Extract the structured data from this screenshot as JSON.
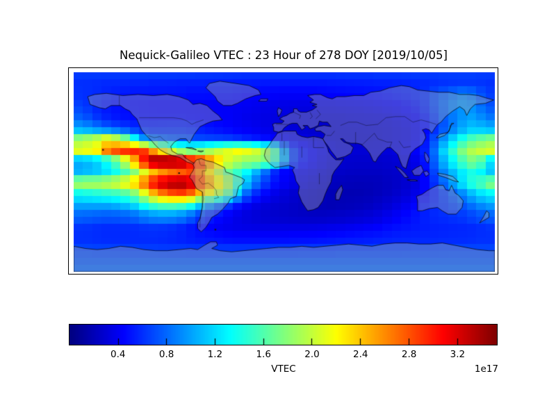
{
  "title": "Nequick-Galileo VTEC : 23 Hour of 278 DOY [2019/10/05]",
  "colorbar": {
    "label": "VTEC",
    "scale_note": "1e17",
    "tick_labels": [
      "0.4",
      "0.8",
      "1.2",
      "1.6",
      "2.0",
      "2.4",
      "2.8",
      "3.2"
    ],
    "tick_values": [
      0.4,
      0.8,
      1.2,
      1.6,
      2.0,
      2.4,
      2.8,
      3.2
    ],
    "vmin": 0.0,
    "vmax": 3.53,
    "colormap": "jet"
  },
  "colors": {
    "background": "#ffffff",
    "frame": "#000000",
    "land_overlay": "rgba(168,168,172,0.38)",
    "coastline": "rgba(0,0,0,0.88)",
    "country_border": "rgba(0,0,0,0.65)"
  },
  "chart_data": {
    "type": "heatmap",
    "title": "Nequick-Galileo VTEC : 23 Hour of 278 DOY [2019/10/05]",
    "colorbar_label": "VTEC",
    "units_scale_factor": "1e17",
    "colormap": "jet",
    "vmin": 0.0,
    "vmax": 3.53,
    "projection": "equirectangular world map",
    "lon_range": [
      -180,
      180
    ],
    "lat_range": [
      -90,
      90
    ],
    "grid_note": "VTEC values in units of 1e17 el/m^2, sampled on 10-degree grid (rows = lats 90..-90, cols = lons -180..170)",
    "lons": [
      -180,
      -170,
      -160,
      -150,
      -140,
      -130,
      -120,
      -110,
      -100,
      -90,
      -80,
      -70,
      -60,
      -50,
      -40,
      -30,
      -20,
      -10,
      0,
      10,
      20,
      30,
      40,
      50,
      60,
      70,
      80,
      90,
      100,
      110,
      120,
      130,
      140,
      150,
      160,
      170
    ],
    "lats": [
      90,
      80,
      70,
      60,
      50,
      40,
      30,
      20,
      10,
      0,
      -10,
      -20,
      -30,
      -40,
      -50,
      -60,
      -70,
      -80,
      -90
    ],
    "values": [
      [
        0.65,
        0.65,
        0.65,
        0.65,
        0.65,
        0.65,
        0.65,
        0.65,
        0.65,
        0.65,
        0.65,
        0.64,
        0.64,
        0.63,
        0.63,
        0.62,
        0.62,
        0.62,
        0.62,
        0.62,
        0.62,
        0.62,
        0.62,
        0.63,
        0.63,
        0.63,
        0.64,
        0.64,
        0.64,
        0.65,
        0.65,
        0.65,
        0.66,
        0.66,
        0.66,
        0.65
      ],
      [
        0.6,
        0.6,
        0.59,
        0.58,
        0.58,
        0.57,
        0.57,
        0.56,
        0.56,
        0.55,
        0.55,
        0.55,
        0.54,
        0.54,
        0.53,
        0.53,
        0.52,
        0.52,
        0.52,
        0.52,
        0.52,
        0.52,
        0.53,
        0.53,
        0.54,
        0.54,
        0.55,
        0.55,
        0.56,
        0.57,
        0.58,
        0.6,
        0.62,
        0.63,
        0.63,
        0.62
      ],
      [
        0.62,
        0.6,
        0.58,
        0.55,
        0.52,
        0.5,
        0.5,
        0.5,
        0.5,
        0.5,
        0.48,
        0.48,
        0.48,
        0.48,
        0.47,
        0.45,
        0.44,
        0.43,
        0.42,
        0.42,
        0.42,
        0.43,
        0.44,
        0.45,
        0.46,
        0.47,
        0.48,
        0.5,
        0.52,
        0.55,
        0.6,
        0.7,
        0.8,
        0.9,
        0.85,
        0.72
      ],
      [
        0.68,
        0.62,
        0.55,
        0.5,
        0.48,
        0.46,
        0.45,
        0.44,
        0.44,
        0.44,
        0.43,
        0.43,
        0.42,
        0.42,
        0.41,
        0.4,
        0.38,
        0.37,
        0.36,
        0.35,
        0.35,
        0.35,
        0.35,
        0.36,
        0.37,
        0.38,
        0.4,
        0.42,
        0.45,
        0.5,
        0.58,
        0.7,
        0.85,
        0.95,
        0.92,
        0.8
      ],
      [
        0.8,
        0.72,
        0.62,
        0.55,
        0.5,
        0.48,
        0.47,
        0.46,
        0.46,
        0.46,
        0.45,
        0.44,
        0.43,
        0.42,
        0.4,
        0.38,
        0.36,
        0.34,
        0.33,
        0.31,
        0.3,
        0.3,
        0.3,
        0.3,
        0.31,
        0.32,
        0.33,
        0.35,
        0.38,
        0.43,
        0.52,
        0.65,
        0.82,
        0.95,
        1.0,
        0.92
      ],
      [
        1.0,
        0.92,
        0.82,
        0.72,
        0.63,
        0.57,
        0.55,
        0.55,
        0.56,
        0.57,
        0.55,
        0.52,
        0.48,
        0.45,
        0.42,
        0.4,
        0.37,
        0.34,
        0.32,
        0.3,
        0.28,
        0.27,
        0.27,
        0.28,
        0.28,
        0.28,
        0.29,
        0.3,
        0.33,
        0.38,
        0.46,
        0.6,
        0.8,
        1.0,
        1.1,
        1.07
      ],
      [
        1.75,
        1.85,
        1.95,
        2.1,
        1.9,
        1.35,
        0.95,
        0.8,
        0.75,
        0.72,
        0.7,
        0.68,
        0.66,
        0.64,
        0.6,
        0.55,
        0.5,
        0.44,
        0.4,
        0.36,
        0.33,
        0.3,
        0.28,
        0.27,
        0.27,
        0.27,
        0.28,
        0.3,
        0.33,
        0.38,
        0.5,
        0.72,
        1.05,
        1.35,
        1.55,
        1.65
      ],
      [
        2.15,
        2.2,
        2.3,
        2.75,
        2.95,
        3.0,
        2.9,
        2.5,
        2.1,
        1.8,
        1.7,
        1.75,
        1.95,
        2.1,
        2.2,
        2.15,
        2.0,
        1.65,
        1.0,
        0.6,
        0.45,
        0.38,
        0.33,
        0.3,
        0.3,
        0.3,
        0.3,
        0.32,
        0.35,
        0.42,
        0.55,
        0.85,
        1.35,
        1.75,
        1.95,
        2.05
      ],
      [
        1.0,
        1.05,
        1.15,
        1.35,
        1.75,
        2.4,
        3.05,
        3.5,
        3.5,
        3.45,
        3.1,
        2.9,
        2.45,
        2.1,
        1.95,
        1.85,
        1.85,
        1.6,
        1.05,
        0.6,
        0.45,
        0.36,
        0.3,
        0.28,
        0.27,
        0.27,
        0.27,
        0.28,
        0.3,
        0.36,
        0.5,
        0.8,
        1.2,
        1.55,
        1.75,
        1.6
      ],
      [
        1.05,
        1.1,
        1.15,
        1.25,
        1.45,
        1.75,
        2.1,
        2.45,
        2.65,
        2.75,
        2.85,
        2.6,
        2.1,
        1.7,
        1.5,
        1.3,
        0.95,
        0.6,
        0.45,
        0.4,
        0.36,
        0.3,
        0.26,
        0.25,
        0.24,
        0.24,
        0.24,
        0.25,
        0.27,
        0.32,
        0.45,
        0.7,
        1.0,
        1.25,
        1.4,
        1.3
      ],
      [
        1.9,
        1.95,
        1.95,
        2.0,
        2.1,
        2.35,
        2.7,
        3.1,
        3.35,
        3.4,
        3.25,
        2.8,
        2.4,
        2.0,
        1.5,
        1.05,
        0.7,
        0.5,
        0.42,
        0.36,
        0.3,
        0.25,
        0.22,
        0.21,
        0.2,
        0.2,
        0.21,
        0.23,
        0.26,
        0.32,
        0.44,
        0.62,
        0.9,
        1.2,
        1.45,
        1.6
      ],
      [
        1.35,
        1.4,
        1.45,
        1.5,
        1.55,
        1.75,
        2.1,
        2.5,
        2.8,
        2.9,
        2.75,
        2.4,
        2.1,
        1.7,
        1.2,
        0.75,
        0.5,
        0.38,
        0.32,
        0.28,
        0.24,
        0.21,
        0.19,
        0.18,
        0.18,
        0.19,
        0.21,
        0.24,
        0.28,
        0.35,
        0.44,
        0.55,
        0.7,
        0.9,
        1.1,
        1.25
      ],
      [
        1.0,
        1.0,
        1.0,
        1.0,
        1.05,
        1.15,
        1.35,
        1.5,
        1.6,
        1.55,
        1.4,
        1.1,
        0.85,
        0.65,
        0.5,
        0.4,
        0.33,
        0.29,
        0.27,
        0.25,
        0.22,
        0.2,
        0.19,
        0.2,
        0.21,
        0.23,
        0.26,
        0.3,
        0.36,
        0.44,
        0.52,
        0.58,
        0.64,
        0.72,
        0.82,
        0.92
      ],
      [
        0.8,
        0.78,
        0.76,
        0.75,
        0.76,
        0.8,
        0.88,
        0.94,
        0.96,
        0.9,
        0.78,
        0.62,
        0.5,
        0.42,
        0.36,
        0.32,
        0.29,
        0.27,
        0.26,
        0.25,
        0.24,
        0.24,
        0.25,
        0.26,
        0.28,
        0.3,
        0.33,
        0.38,
        0.44,
        0.5,
        0.55,
        0.58,
        0.6,
        0.63,
        0.68,
        0.74
      ],
      [
        0.63,
        0.62,
        0.6,
        0.59,
        0.59,
        0.6,
        0.62,
        0.63,
        0.62,
        0.58,
        0.52,
        0.46,
        0.42,
        0.39,
        0.37,
        0.36,
        0.35,
        0.35,
        0.35,
        0.35,
        0.35,
        0.36,
        0.37,
        0.38,
        0.4,
        0.42,
        0.44,
        0.47,
        0.5,
        0.52,
        0.54,
        0.55,
        0.56,
        0.57,
        0.58,
        0.6
      ],
      [
        0.6,
        0.6,
        0.59,
        0.58,
        0.58,
        0.58,
        0.58,
        0.58,
        0.57,
        0.55,
        0.53,
        0.51,
        0.5,
        0.48,
        0.47,
        0.47,
        0.47,
        0.47,
        0.47,
        0.48,
        0.48,
        0.49,
        0.5,
        0.51,
        0.52,
        0.53,
        0.54,
        0.55,
        0.56,
        0.56,
        0.57,
        0.57,
        0.58,
        0.58,
        0.59,
        0.6
      ],
      [
        0.68,
        0.68,
        0.67,
        0.67,
        0.66,
        0.66,
        0.65,
        0.65,
        0.64,
        0.64,
        0.63,
        0.63,
        0.63,
        0.63,
        0.63,
        0.63,
        0.63,
        0.63,
        0.63,
        0.63,
        0.64,
        0.64,
        0.64,
        0.65,
        0.65,
        0.65,
        0.66,
        0.66,
        0.66,
        0.67,
        0.67,
        0.67,
        0.68,
        0.68,
        0.68,
        0.68
      ],
      [
        0.74,
        0.74,
        0.74,
        0.74,
        0.74,
        0.74,
        0.74,
        0.74,
        0.74,
        0.74,
        0.74,
        0.74,
        0.74,
        0.74,
        0.74,
        0.74,
        0.74,
        0.74,
        0.74,
        0.74,
        0.74,
        0.74,
        0.74,
        0.74,
        0.74,
        0.74,
        0.74,
        0.74,
        0.74,
        0.74,
        0.74,
        0.74,
        0.74,
        0.74,
        0.74,
        0.74
      ],
      [
        0.8,
        0.8,
        0.8,
        0.8,
        0.8,
        0.8,
        0.8,
        0.8,
        0.8,
        0.8,
        0.8,
        0.8,
        0.8,
        0.8,
        0.8,
        0.8,
        0.8,
        0.8,
        0.8,
        0.8,
        0.8,
        0.8,
        0.8,
        0.8,
        0.8,
        0.8,
        0.8,
        0.8,
        0.8,
        0.8,
        0.8,
        0.8,
        0.8,
        0.8,
        0.8,
        0.8
      ]
    ]
  }
}
